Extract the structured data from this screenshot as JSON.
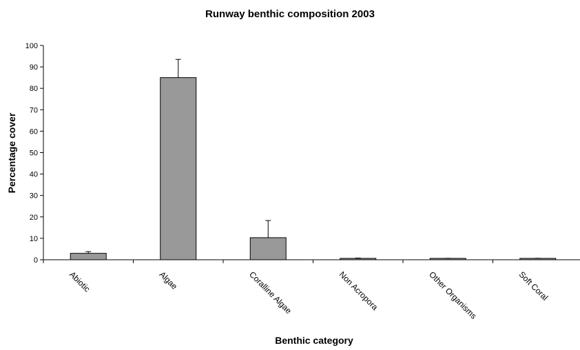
{
  "chart_data": {
    "type": "bar",
    "title": "Runway benthic composition 2003",
    "xlabel": "Benthic category",
    "ylabel": "Percentage cover",
    "categories": [
      "Abiotic",
      "Algae",
      "Coralline Algae",
      "Non Acropora",
      "Other Organisms",
      "Soft Coral"
    ],
    "values": [
      3,
      85,
      10.3,
      0.6,
      0.5,
      0.5
    ],
    "errors": [
      0.8,
      8.5,
      8,
      0.2,
      0.2,
      0.2
    ],
    "ylim": [
      0,
      100
    ],
    "yticks": [
      0,
      10,
      20,
      30,
      40,
      50,
      60,
      70,
      80,
      90,
      100
    ],
    "grid": false,
    "legend": "none",
    "bar_color": "#999999"
  }
}
